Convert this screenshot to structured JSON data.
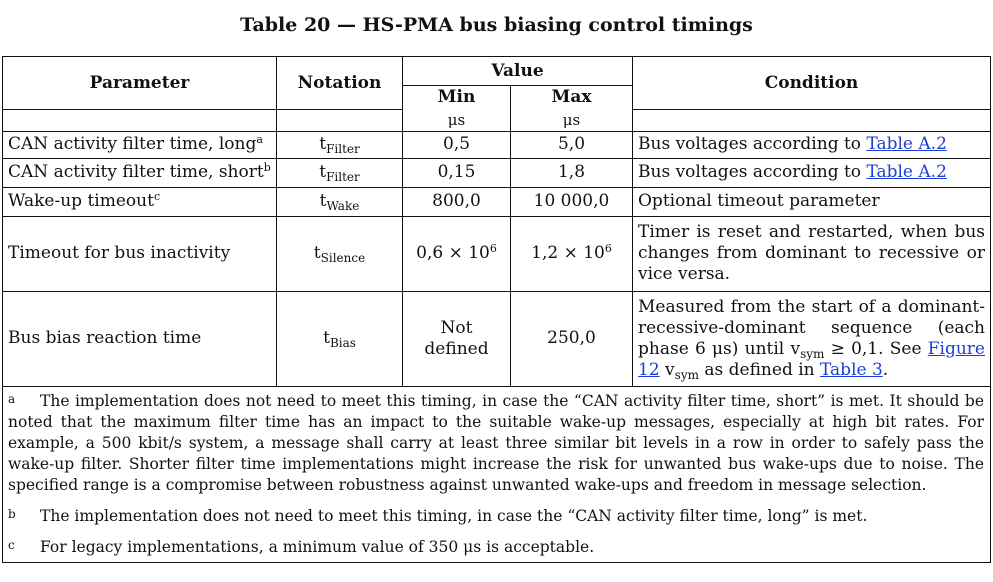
{
  "caption": "Table 20 — HS-PMA bus biasing control timings",
  "headers": {
    "parameter": "Parameter",
    "notation": "Notation",
    "value": "Value",
    "min": "Min",
    "max": "Max",
    "min_unit": "μs",
    "max_unit": "μs",
    "condition": "Condition"
  },
  "rows": [
    {
      "parameter": "CAN activity filter time, long",
      "param_mark": "a",
      "notation_base": "t",
      "notation_sub": "Filter",
      "min": "0,5",
      "max": "5,0",
      "condition_text": "Bus voltages according to ",
      "condition_link": "Table A.2"
    },
    {
      "parameter": "CAN activity filter time, short",
      "param_mark": "b",
      "notation_base": "t",
      "notation_sub": "Filter",
      "min": "0,15",
      "max": "1,8",
      "condition_text": "Bus voltages according to ",
      "condition_link": "Table A.2"
    },
    {
      "parameter": "Wake-up timeout",
      "param_mark": "c",
      "notation_base": "t",
      "notation_sub": "Wake",
      "min": "800,0",
      "max": "10 000,0",
      "condition_text": "Optional timeout parameter"
    },
    {
      "parameter": "Timeout for bus inactivity",
      "notation_base": "t",
      "notation_sub": "Silence",
      "min_base": "0,6 × 10",
      "min_exp": "6",
      "max_base": "1,2 × 10",
      "max_exp": "6",
      "condition_text": "Timer is reset and restarted, when bus changes from dominant to recessive or vice versa."
    },
    {
      "parameter": "Bus bias reaction time",
      "notation_base": "t",
      "notation_sub": "Bias",
      "min_line1": "Not",
      "min_line2": "defined",
      "max": "250,0",
      "cond_p1": "Measured from the start of a dominant-recessive-dominant sequence (each phase 6 μs) until v",
      "cond_sub1": "sym",
      "cond_p2": " ≥ 0,1. See ",
      "cond_link1": "Figure 12",
      "cond_p3": "v",
      "cond_sub2": "sym",
      "cond_p4": " as defined in ",
      "cond_link2": "Table 3",
      "cond_p5": "."
    }
  ],
  "footnotes": [
    {
      "mark": "a",
      "text": "The implementation does not need to meet this timing, in case the “CAN activity filter time, short” is met. It should be noted that the maximum filter time has an impact to the suitable wake-up messages, especially at high bit rates. For example, a 500 kbit/s system, a message shall carry at least three similar bit levels in a row in order to safely pass the wake-up filter. Shorter filter time implementations might increase the risk for unwanted bus wake-ups due to noise. The specified range is a compromise between robustness against unwanted wake-ups and freedom in message selection."
    },
    {
      "mark": "b",
      "text": "The implementation does not need to meet this timing, in case the “CAN activity filter time, long” is met."
    },
    {
      "mark": "c",
      "text": "For legacy implementations, a minimum value of 350 μs is acceptable."
    }
  ]
}
